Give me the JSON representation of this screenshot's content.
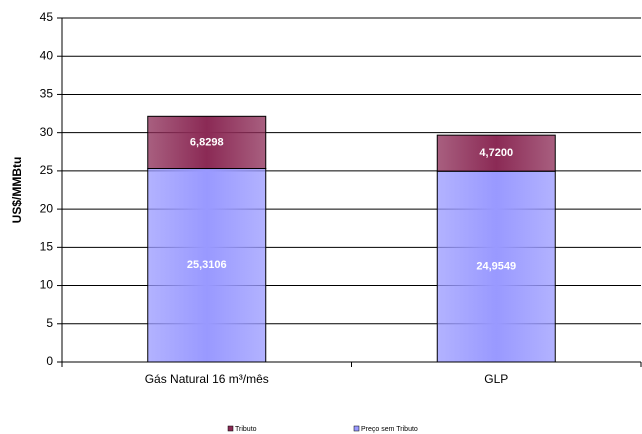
{
  "chart_data": {
    "type": "stacked_bar",
    "y_label": "US$/MMBtu",
    "categories": [
      "Gás Natural 16 m³/mês",
      "GLP"
    ],
    "series": [
      {
        "name": "Tributo",
        "color": "#8b2a55",
        "values": [
          6.8298,
          4.72
        ],
        "value_labels": [
          "6,8298",
          "4,7200"
        ]
      },
      {
        "name": "Preço sem Tributo",
        "color": "#9999ff",
        "values": [
          25.3106,
          24.9549
        ],
        "value_labels": [
          "25,3106",
          "24,9549"
        ]
      }
    ],
    "ylim": [
      0,
      45
    ],
    "yticks": [
      0,
      5,
      10,
      15,
      20,
      25,
      30,
      35,
      40,
      45
    ],
    "grid": true
  }
}
